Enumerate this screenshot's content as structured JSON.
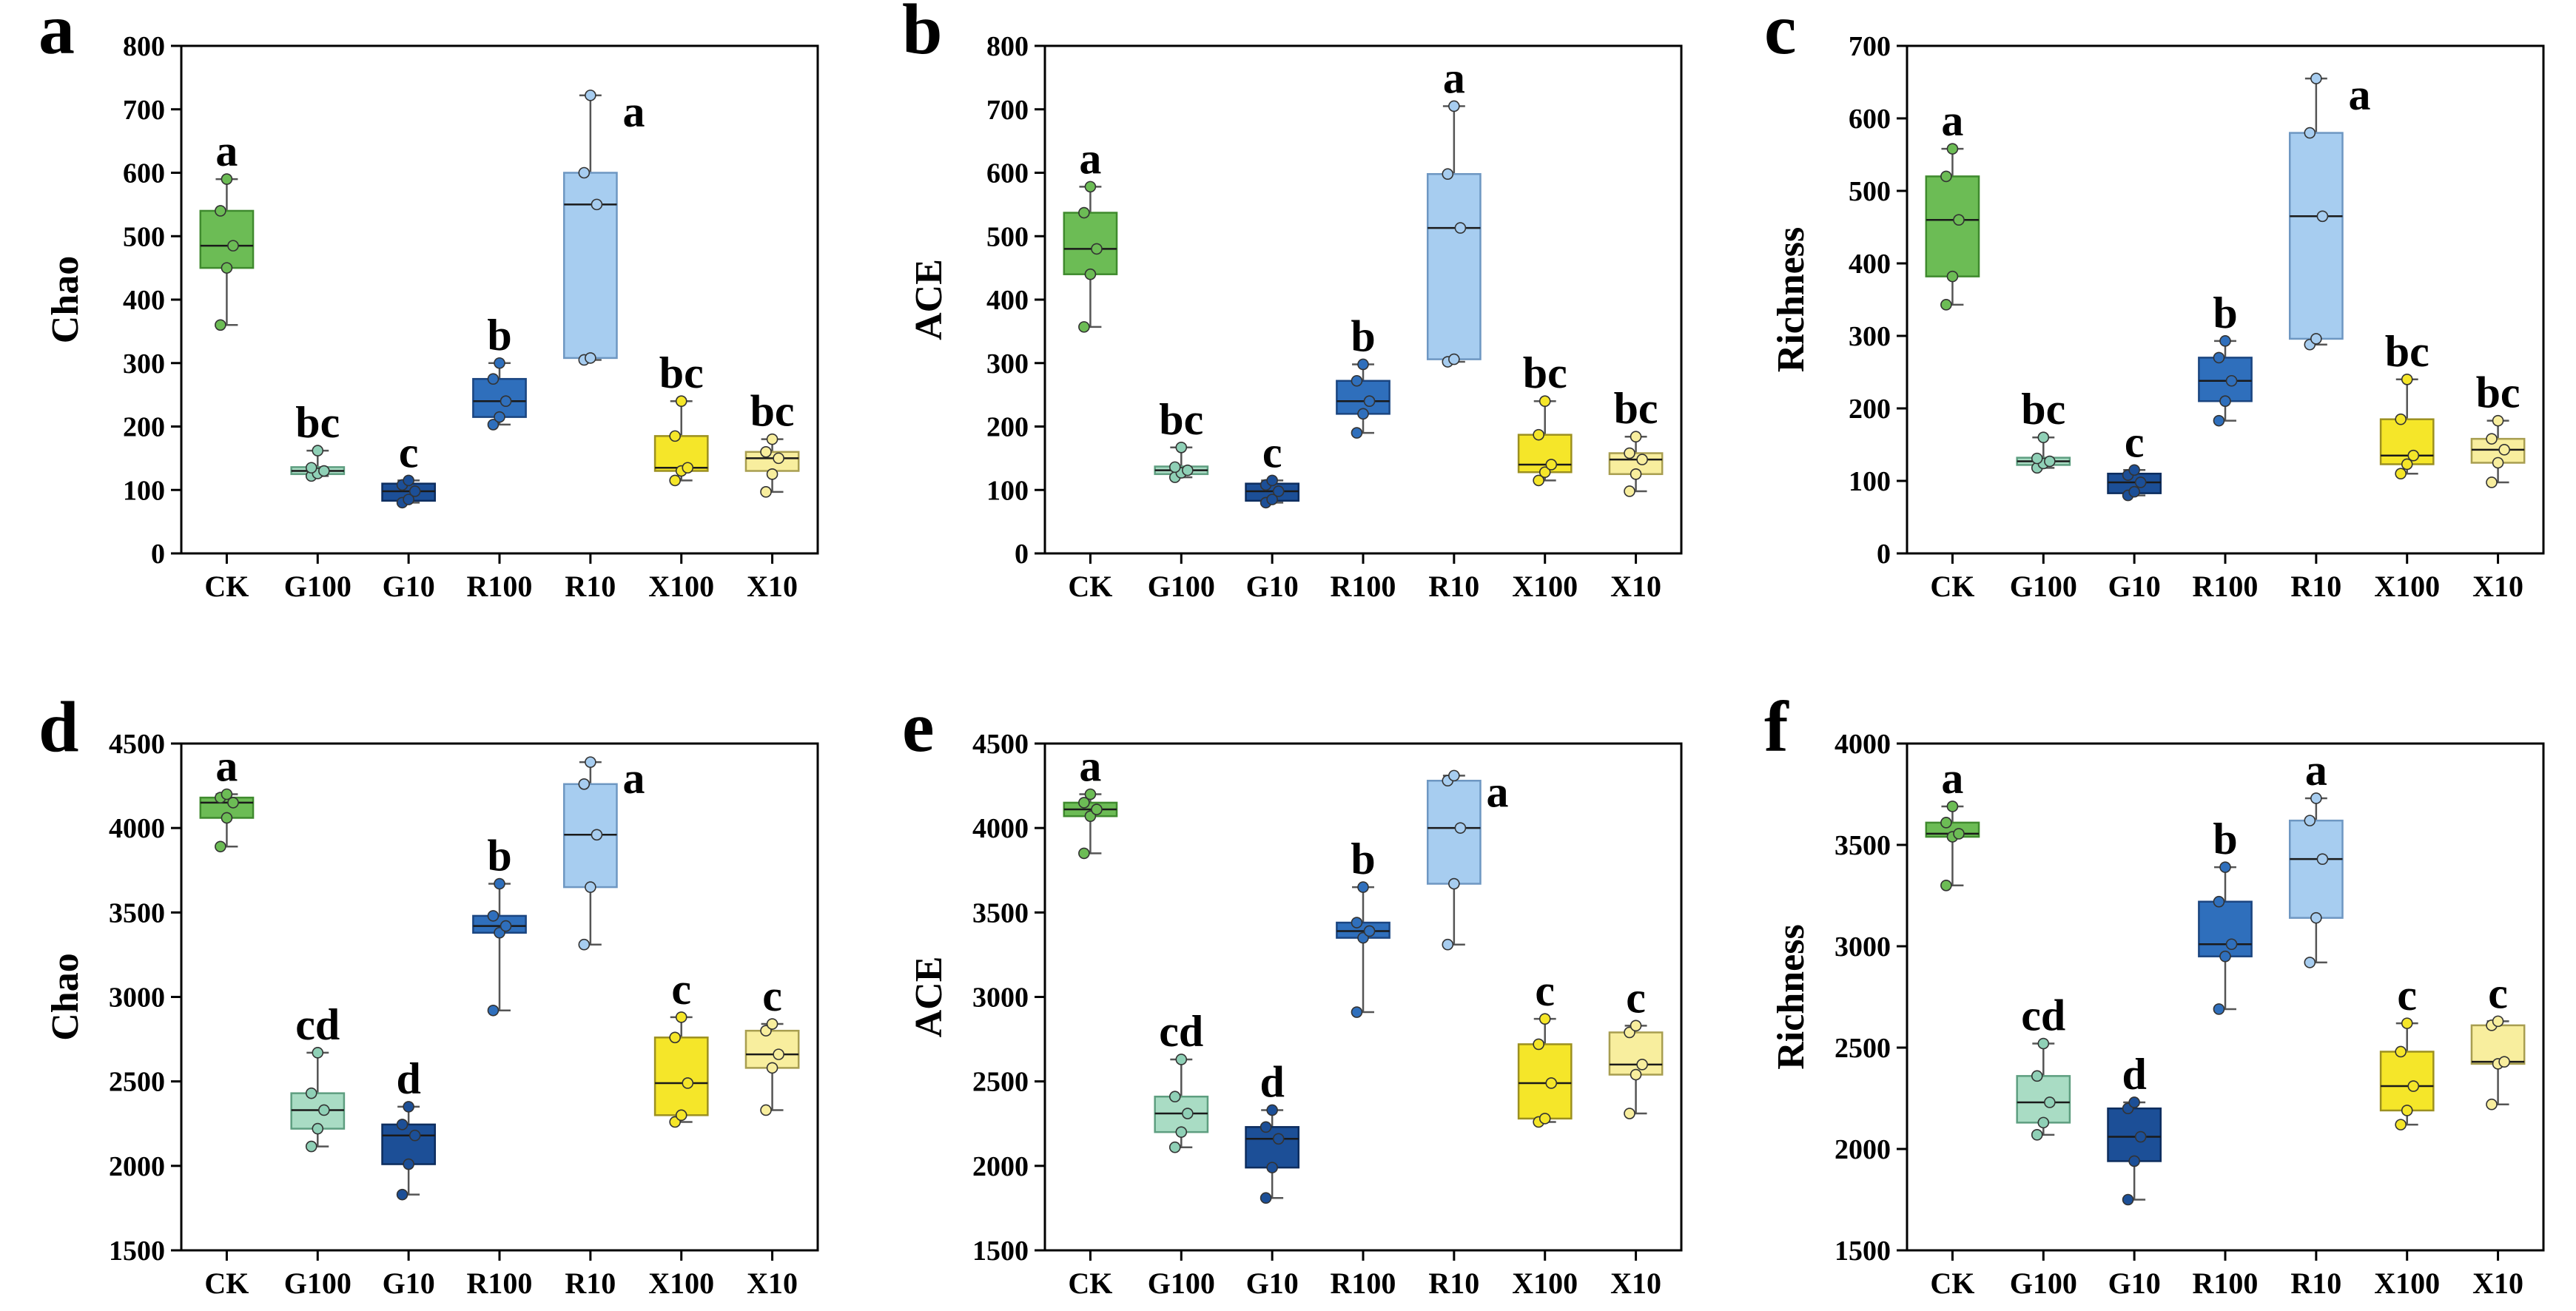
{
  "chart_data": [
    {
      "panel": "a",
      "type": "box",
      "ylabel": "Chao",
      "ylim": [
        0,
        800
      ],
      "yticks": [
        0,
        100,
        200,
        300,
        400,
        500,
        600,
        700,
        800
      ],
      "categories": [
        "CK",
        "G100",
        "G10",
        "R100",
        "R10",
        "X100",
        "X10"
      ],
      "boxes": [
        {
          "min": 360,
          "q1": 450,
          "median": 485,
          "q3": 540,
          "max": 590,
          "points": [
            360,
            450,
            485,
            540,
            590
          ],
          "label": "a"
        },
        {
          "min": 122,
          "q1": 125,
          "median": 130,
          "q3": 136,
          "max": 162,
          "points": [
            122,
            126,
            130,
            135,
            162
          ],
          "label": "bc"
        },
        {
          "min": 80,
          "q1": 83,
          "median": 98,
          "q3": 110,
          "max": 115,
          "points": [
            80,
            85,
            98,
            108,
            115
          ],
          "label": "c"
        },
        {
          "min": 203,
          "q1": 215,
          "median": 240,
          "q3": 275,
          "max": 300,
          "points": [
            203,
            215,
            240,
            275,
            300
          ],
          "label": "b"
        },
        {
          "min": 305,
          "q1": 308,
          "median": 550,
          "q3": 600,
          "max": 722,
          "points": [
            305,
            308,
            550,
            600,
            722
          ],
          "label": "a"
        },
        {
          "min": 115,
          "q1": 130,
          "median": 135,
          "q3": 185,
          "max": 240,
          "points": [
            115,
            130,
            135,
            185,
            240
          ],
          "label": "bc"
        },
        {
          "min": 97,
          "q1": 130,
          "median": 150,
          "q3": 160,
          "max": 180,
          "points": [
            97,
            125,
            150,
            160,
            180
          ],
          "label": "bc"
        }
      ]
    },
    {
      "panel": "b",
      "type": "box",
      "ylabel": "ACE",
      "ylim": [
        0,
        800
      ],
      "yticks": [
        0,
        100,
        200,
        300,
        400,
        500,
        600,
        700,
        800
      ],
      "categories": [
        "CK",
        "G100",
        "G10",
        "R100",
        "R10",
        "X100",
        "X10"
      ],
      "boxes": [
        {
          "min": 357,
          "q1": 440,
          "median": 480,
          "q3": 537,
          "max": 578,
          "points": [
            357,
            440,
            480,
            537,
            578
          ],
          "label": "a"
        },
        {
          "min": 120,
          "q1": 125,
          "median": 131,
          "q3": 137,
          "max": 167,
          "points": [
            120,
            127,
            131,
            136,
            167
          ],
          "label": "bc"
        },
        {
          "min": 80,
          "q1": 83,
          "median": 98,
          "q3": 110,
          "max": 115,
          "points": [
            80,
            85,
            98,
            108,
            115
          ],
          "label": "c"
        },
        {
          "min": 190,
          "q1": 220,
          "median": 240,
          "q3": 272,
          "max": 298,
          "points": [
            190,
            220,
            240,
            272,
            298
          ],
          "label": "b"
        },
        {
          "min": 302,
          "q1": 306,
          "median": 513,
          "q3": 598,
          "max": 705,
          "points": [
            302,
            306,
            513,
            598,
            705
          ],
          "label": "a"
        },
        {
          "min": 115,
          "q1": 128,
          "median": 140,
          "q3": 187,
          "max": 240,
          "points": [
            115,
            128,
            140,
            187,
            240
          ],
          "label": "bc"
        },
        {
          "min": 98,
          "q1": 125,
          "median": 148,
          "q3": 158,
          "max": 184,
          "points": [
            98,
            125,
            148,
            158,
            184
          ],
          "label": "bc"
        }
      ]
    },
    {
      "panel": "c",
      "type": "box",
      "ylabel": "Richness",
      "ylim": [
        0,
        700
      ],
      "yticks": [
        0,
        100,
        200,
        300,
        400,
        500,
        600,
        700
      ],
      "categories": [
        "CK",
        "G100",
        "G10",
        "R100",
        "R10",
        "X100",
        "X10"
      ],
      "boxes": [
        {
          "min": 343,
          "q1": 382,
          "median": 460,
          "q3": 520,
          "max": 558,
          "points": [
            343,
            382,
            460,
            520,
            558
          ],
          "label": "a"
        },
        {
          "min": 118,
          "q1": 122,
          "median": 127,
          "q3": 132,
          "max": 160,
          "points": [
            118,
            124,
            127,
            131,
            160
          ],
          "label": "bc"
        },
        {
          "min": 80,
          "q1": 83,
          "median": 98,
          "q3": 110,
          "max": 115,
          "points": [
            80,
            85,
            98,
            108,
            115
          ],
          "label": "c"
        },
        {
          "min": 183,
          "q1": 210,
          "median": 238,
          "q3": 270,
          "max": 293,
          "points": [
            183,
            210,
            238,
            270,
            293
          ],
          "label": "b"
        },
        {
          "min": 288,
          "q1": 296,
          "median": 465,
          "q3": 580,
          "max": 655,
          "points": [
            288,
            296,
            465,
            580,
            655
          ],
          "label": "a"
        },
        {
          "min": 110,
          "q1": 123,
          "median": 135,
          "q3": 185,
          "max": 240,
          "points": [
            110,
            123,
            135,
            185,
            240
          ],
          "label": "bc"
        },
        {
          "min": 98,
          "q1": 125,
          "median": 143,
          "q3": 158,
          "max": 183,
          "points": [
            98,
            125,
            143,
            158,
            183
          ],
          "label": "bc"
        }
      ]
    },
    {
      "panel": "d",
      "type": "box",
      "ylabel": "Chao",
      "ylim": [
        1500,
        4500
      ],
      "yticks": [
        1500,
        2000,
        2500,
        3000,
        3500,
        4000,
        4500
      ],
      "categories": [
        "CK",
        "G100",
        "G10",
        "R100",
        "R10",
        "X100",
        "X10"
      ],
      "boxes": [
        {
          "min": 3890,
          "q1": 4060,
          "median": 4150,
          "q3": 4180,
          "max": 4200,
          "points": [
            3890,
            4060,
            4150,
            4180,
            4200
          ],
          "label": "a"
        },
        {
          "min": 2115,
          "q1": 2220,
          "median": 2330,
          "q3": 2430,
          "max": 2670,
          "points": [
            2115,
            2220,
            2330,
            2430,
            2670
          ],
          "label": "cd"
        },
        {
          "min": 1830,
          "q1": 2010,
          "median": 2180,
          "q3": 2245,
          "max": 2350,
          "points": [
            1830,
            2010,
            2180,
            2245,
            2350
          ],
          "label": "d"
        },
        {
          "min": 2920,
          "q1": 3380,
          "median": 3420,
          "q3": 3480,
          "max": 3670,
          "points": [
            2920,
            3380,
            3420,
            3480,
            3670
          ],
          "label": "b"
        },
        {
          "min": 3310,
          "q1": 3650,
          "median": 3960,
          "q3": 4260,
          "max": 4390,
          "points": [
            3310,
            3650,
            3960,
            4260,
            4390
          ],
          "label": "a"
        },
        {
          "min": 2260,
          "q1": 2300,
          "median": 2490,
          "q3": 2760,
          "max": 2880,
          "points": [
            2260,
            2300,
            2490,
            2760,
            2880
          ],
          "label": "c"
        },
        {
          "min": 2330,
          "q1": 2580,
          "median": 2660,
          "q3": 2800,
          "max": 2840,
          "points": [
            2330,
            2580,
            2660,
            2800,
            2840
          ],
          "label": "c"
        }
      ]
    },
    {
      "panel": "e",
      "type": "box",
      "ylabel": "ACE",
      "ylim": [
        1500,
        4500
      ],
      "yticks": [
        1500,
        2000,
        2500,
        3000,
        3500,
        4000,
        4500
      ],
      "categories": [
        "CK",
        "G100",
        "G10",
        "R100",
        "R10",
        "X100",
        "X10"
      ],
      "boxes": [
        {
          "min": 3850,
          "q1": 4070,
          "median": 4110,
          "q3": 4150,
          "max": 4200,
          "points": [
            3850,
            4070,
            4110,
            4150,
            4200
          ],
          "label": "a"
        },
        {
          "min": 2110,
          "q1": 2200,
          "median": 2310,
          "q3": 2410,
          "max": 2630,
          "points": [
            2110,
            2200,
            2310,
            2410,
            2630
          ],
          "label": "cd"
        },
        {
          "min": 1810,
          "q1": 1990,
          "median": 2160,
          "q3": 2230,
          "max": 2330,
          "points": [
            1810,
            1990,
            2160,
            2230,
            2330
          ],
          "label": "d"
        },
        {
          "min": 2910,
          "q1": 3350,
          "median": 3390,
          "q3": 3440,
          "max": 3650,
          "points": [
            2910,
            3350,
            3390,
            3440,
            3650
          ],
          "label": "b"
        },
        {
          "min": 3310,
          "q1": 3670,
          "median": 4000,
          "q3": 4280,
          "max": 4310,
          "points": [
            3310,
            3670,
            4000,
            4280,
            4310
          ],
          "label": "a"
        },
        {
          "min": 2260,
          "q1": 2280,
          "median": 2490,
          "q3": 2720,
          "max": 2870,
          "points": [
            2260,
            2280,
            2490,
            2720,
            2870
          ],
          "label": "c"
        },
        {
          "min": 2310,
          "q1": 2540,
          "median": 2600,
          "q3": 2790,
          "max": 2830,
          "points": [
            2310,
            2540,
            2600,
            2790,
            2830
          ],
          "label": "c"
        }
      ]
    },
    {
      "panel": "f",
      "type": "box",
      "ylabel": "Richness",
      "ylim": [
        1500,
        4000
      ],
      "yticks": [
        1500,
        2000,
        2500,
        3000,
        3500,
        4000
      ],
      "categories": [
        "CK",
        "G100",
        "G10",
        "R100",
        "R10",
        "X100",
        "X10"
      ],
      "boxes": [
        {
          "min": 3300,
          "q1": 3540,
          "median": 3555,
          "q3": 3610,
          "max": 3690,
          "points": [
            3300,
            3540,
            3555,
            3610,
            3690
          ],
          "label": "a"
        },
        {
          "min": 2070,
          "q1": 2130,
          "median": 2230,
          "q3": 2360,
          "max": 2520,
          "points": [
            2070,
            2130,
            2230,
            2360,
            2520
          ],
          "label": "cd"
        },
        {
          "min": 1750,
          "q1": 1940,
          "median": 2060,
          "q3": 2200,
          "max": 2230,
          "points": [
            1750,
            1940,
            2060,
            2200,
            2230
          ],
          "label": "d"
        },
        {
          "min": 2690,
          "q1": 2950,
          "median": 3010,
          "q3": 3220,
          "max": 3390,
          "points": [
            2690,
            2950,
            3010,
            3220,
            3390
          ],
          "label": "b"
        },
        {
          "min": 2920,
          "q1": 3140,
          "median": 3430,
          "q3": 3620,
          "max": 3730,
          "points": [
            2920,
            3140,
            3430,
            3620,
            3730
          ],
          "label": "a"
        },
        {
          "min": 2120,
          "q1": 2190,
          "median": 2310,
          "q3": 2480,
          "max": 2620,
          "points": [
            2120,
            2190,
            2310,
            2480,
            2620
          ],
          "label": "c"
        },
        {
          "min": 2220,
          "q1": 2420,
          "median": 2430,
          "q3": 2610,
          "max": 2630,
          "points": [
            2220,
            2420,
            2430,
            2610,
            2630
          ],
          "label": "c"
        }
      ]
    }
  ],
  "style": {
    "box_fill": [
      "#6cbc55",
      "#a9dcc4",
      "#1c4f97",
      "#2f6fbc",
      "#a7cdf0",
      "#f5e629",
      "#f8ee9e"
    ],
    "box_stroke": [
      "#3f8a2e",
      "#5e9e80",
      "#0d2d5e",
      "#1b4580",
      "#6e97c2",
      "#9c9020",
      "#a89e50"
    ],
    "dot_fill": [
      "#6cbc55",
      "#8fd0b6",
      "#1c4f97",
      "#2f6fbc",
      "#a7cdf0",
      "#f5e629",
      "#f8ee9e"
    ],
    "median_color": "#1a1a1a",
    "axis_color": "#000000"
  }
}
